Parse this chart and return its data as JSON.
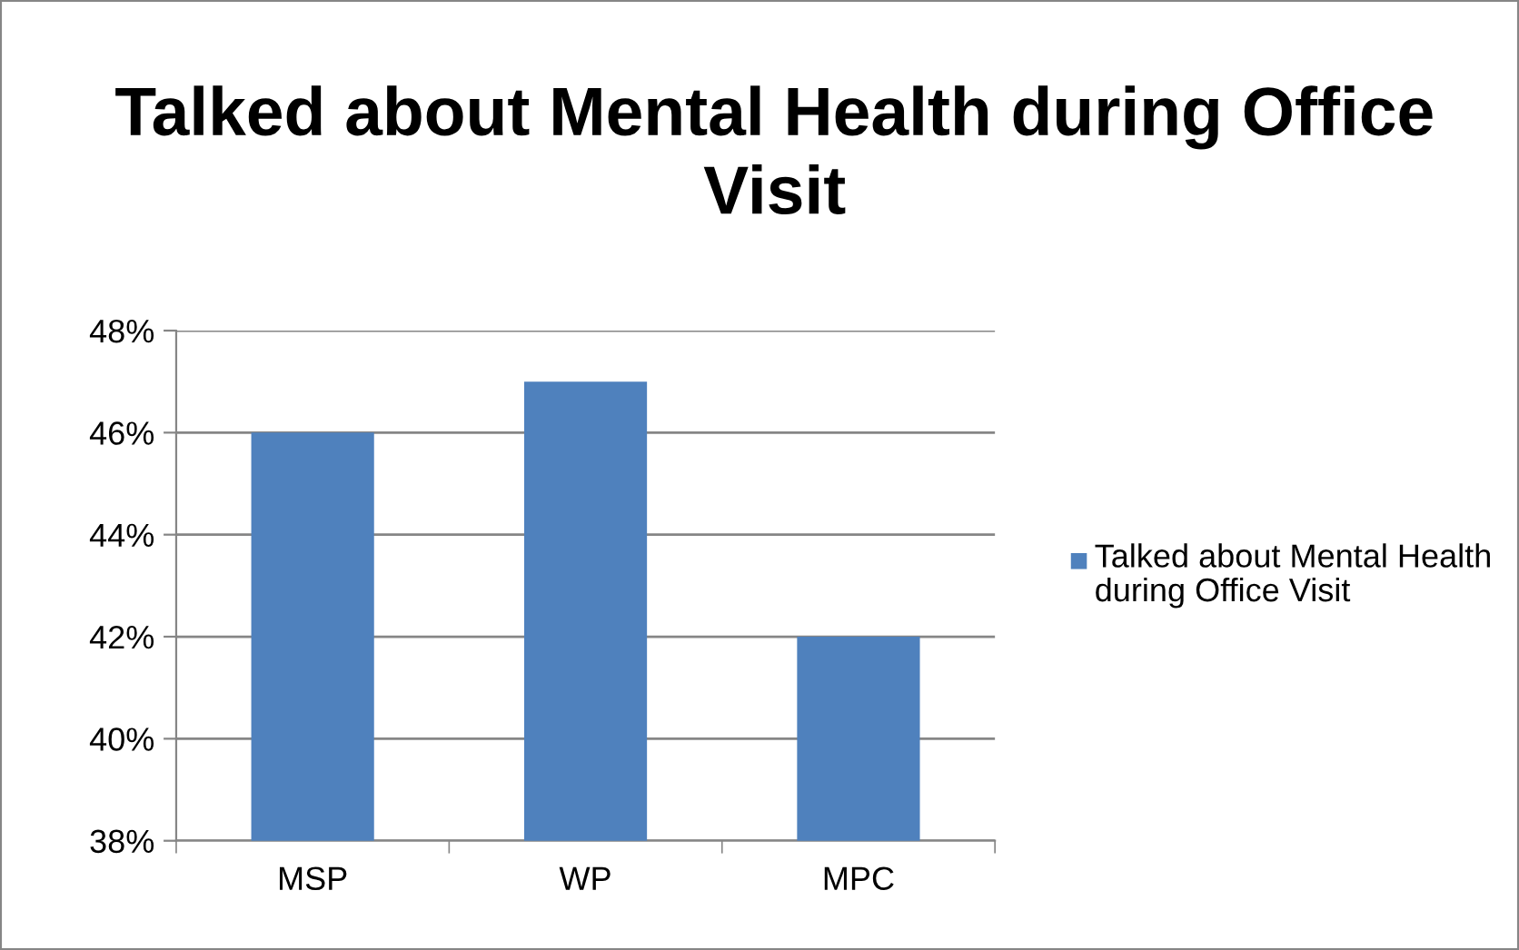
{
  "chart_data": {
    "type": "bar",
    "title": "Talked about Mental Health during Office Visit",
    "categories": [
      "MSP",
      "WP",
      "MPC"
    ],
    "series": [
      {
        "name": "Talked about Mental Health during Office Visit",
        "color": "#4f81bd",
        "values": [
          46,
          47,
          42
        ]
      }
    ],
    "ylim": [
      38,
      48
    ],
    "yticks": [
      {
        "value": 38,
        "label": "38%"
      },
      {
        "value": 40,
        "label": "40%"
      },
      {
        "value": 42,
        "label": "42%"
      },
      {
        "value": 44,
        "label": "44%"
      },
      {
        "value": 46,
        "label": "46%"
      },
      {
        "value": 48,
        "label": "48%"
      }
    ],
    "grid": "y",
    "legend": "right"
  }
}
